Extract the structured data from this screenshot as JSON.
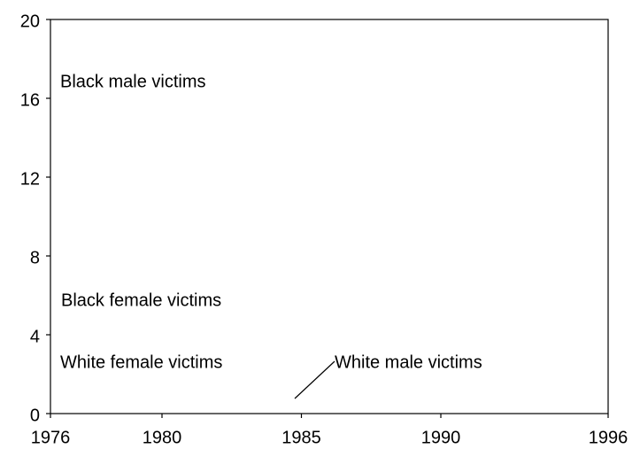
{
  "chart_data": {
    "type": "line",
    "annotations": [
      "Black male victims",
      "Black female victims",
      "White female victims",
      "White male victims"
    ],
    "xlim": [
      1976,
      1996
    ],
    "xticks": [
      1976,
      1980,
      1985,
      1990,
      1996
    ],
    "ylim": [
      0,
      20
    ],
    "yticks": [
      0,
      4,
      8,
      12,
      16,
      20
    ]
  }
}
